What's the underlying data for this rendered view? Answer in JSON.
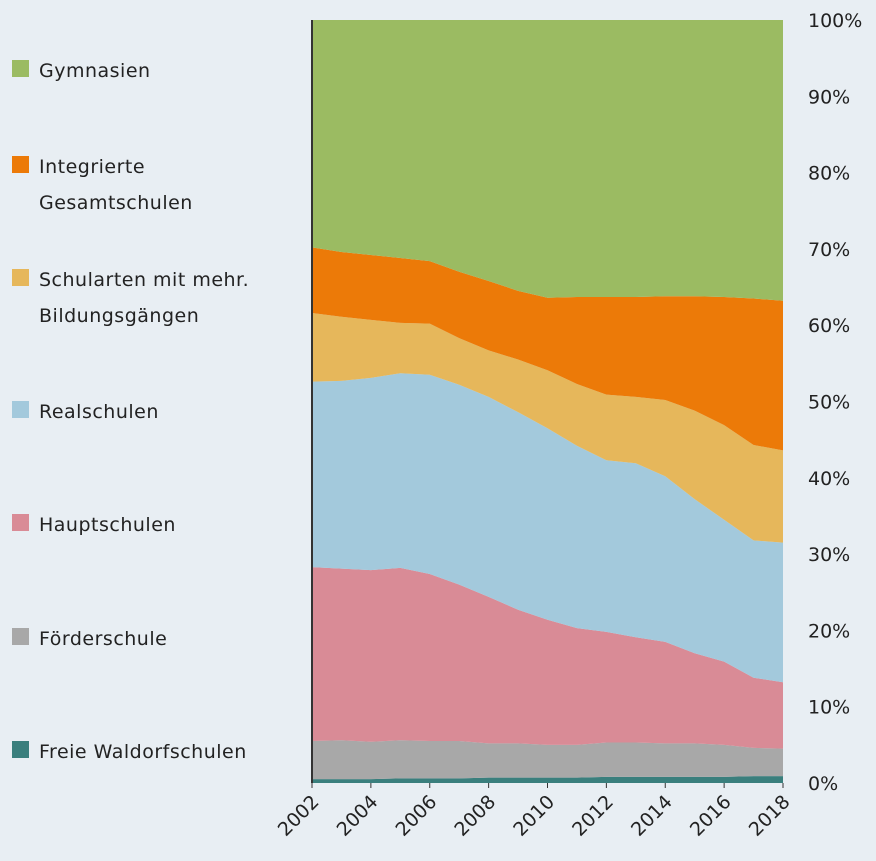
{
  "chart_data": {
    "type": "stacked_area",
    "x": [
      2002,
      2003,
      2004,
      2005,
      2006,
      2007,
      2008,
      2009,
      2010,
      2011,
      2012,
      2013,
      2014,
      2015,
      2016,
      2017,
      2018
    ],
    "xlim": [
      2002,
      2018
    ],
    "xticks": [
      2002,
      2004,
      2006,
      2008,
      2010,
      2012,
      2014,
      2016,
      2018
    ],
    "ylim": [
      0,
      100
    ],
    "yticks": [
      {
        "value": 0,
        "label": "0%"
      },
      {
        "value": 10,
        "label": "10%"
      },
      {
        "value": 20,
        "label": "20%"
      },
      {
        "value": 30,
        "label": "30%"
      },
      {
        "value": 40,
        "label": "40%"
      },
      {
        "value": 50,
        "label": "50%"
      },
      {
        "value": 60,
        "label": "60%"
      },
      {
        "value": 70,
        "label": "70%"
      },
      {
        "value": 80,
        "label": "80%"
      },
      {
        "value": 90,
        "label": "90%"
      },
      {
        "value": 100,
        "label": "100%"
      }
    ],
    "series": [
      {
        "name": "Freie Waldorfschulen",
        "color": "#3a7f7d",
        "values": [
          0.5,
          0.5,
          0.5,
          0.6,
          0.6,
          0.6,
          0.7,
          0.7,
          0.7,
          0.7,
          0.8,
          0.8,
          0.8,
          0.8,
          0.8,
          0.9,
          0.9
        ]
      },
      {
        "name": "Förderschule",
        "color": "#a8a8a8",
        "values": [
          5.0,
          5.1,
          4.9,
          5.0,
          4.9,
          4.9,
          4.5,
          4.5,
          4.3,
          4.3,
          4.5,
          4.5,
          4.4,
          4.4,
          4.2,
          3.7,
          3.6
        ]
      },
      {
        "name": "Hauptschulen",
        "color": "#d98b96",
        "values": [
          22.8,
          22.5,
          22.5,
          22.6,
          21.9,
          20.5,
          19.2,
          17.5,
          16.4,
          15.3,
          14.5,
          13.8,
          13.3,
          11.8,
          10.9,
          9.2,
          8.7
        ]
      },
      {
        "name": "Realschulen",
        "color": "#a3c9dc",
        "values": [
          24.3,
          24.6,
          25.2,
          25.5,
          26.1,
          26.2,
          26.2,
          25.9,
          25.1,
          23.9,
          22.5,
          22.8,
          21.7,
          20.2,
          18.6,
          18.0,
          18.3
        ]
      },
      {
        "name": "Schularten mit mehr. Bildungsgängen",
        "color": "#e6b75b",
        "values": [
          9.0,
          8.4,
          7.6,
          6.6,
          6.7,
          6.1,
          6.1,
          6.9,
          7.6,
          8.1,
          8.6,
          8.7,
          10.0,
          11.6,
          12.4,
          12.5,
          12.1
        ]
      },
      {
        "name": "Integrierte Gesamtschulen",
        "color": "#ec7a08",
        "values": [
          8.6,
          8.5,
          8.5,
          8.5,
          8.2,
          8.7,
          9.1,
          9.0,
          9.5,
          11.4,
          12.8,
          13.1,
          13.6,
          15.0,
          16.8,
          19.2,
          19.6
        ]
      },
      {
        "name": "Gymnasien",
        "color": "#9bbb62",
        "values": [
          29.8,
          30.4,
          30.8,
          31.2,
          31.6,
          33.0,
          34.2,
          35.5,
          36.4,
          36.3,
          36.3,
          36.3,
          36.2,
          36.2,
          36.3,
          36.5,
          36.8
        ]
      }
    ]
  }
}
